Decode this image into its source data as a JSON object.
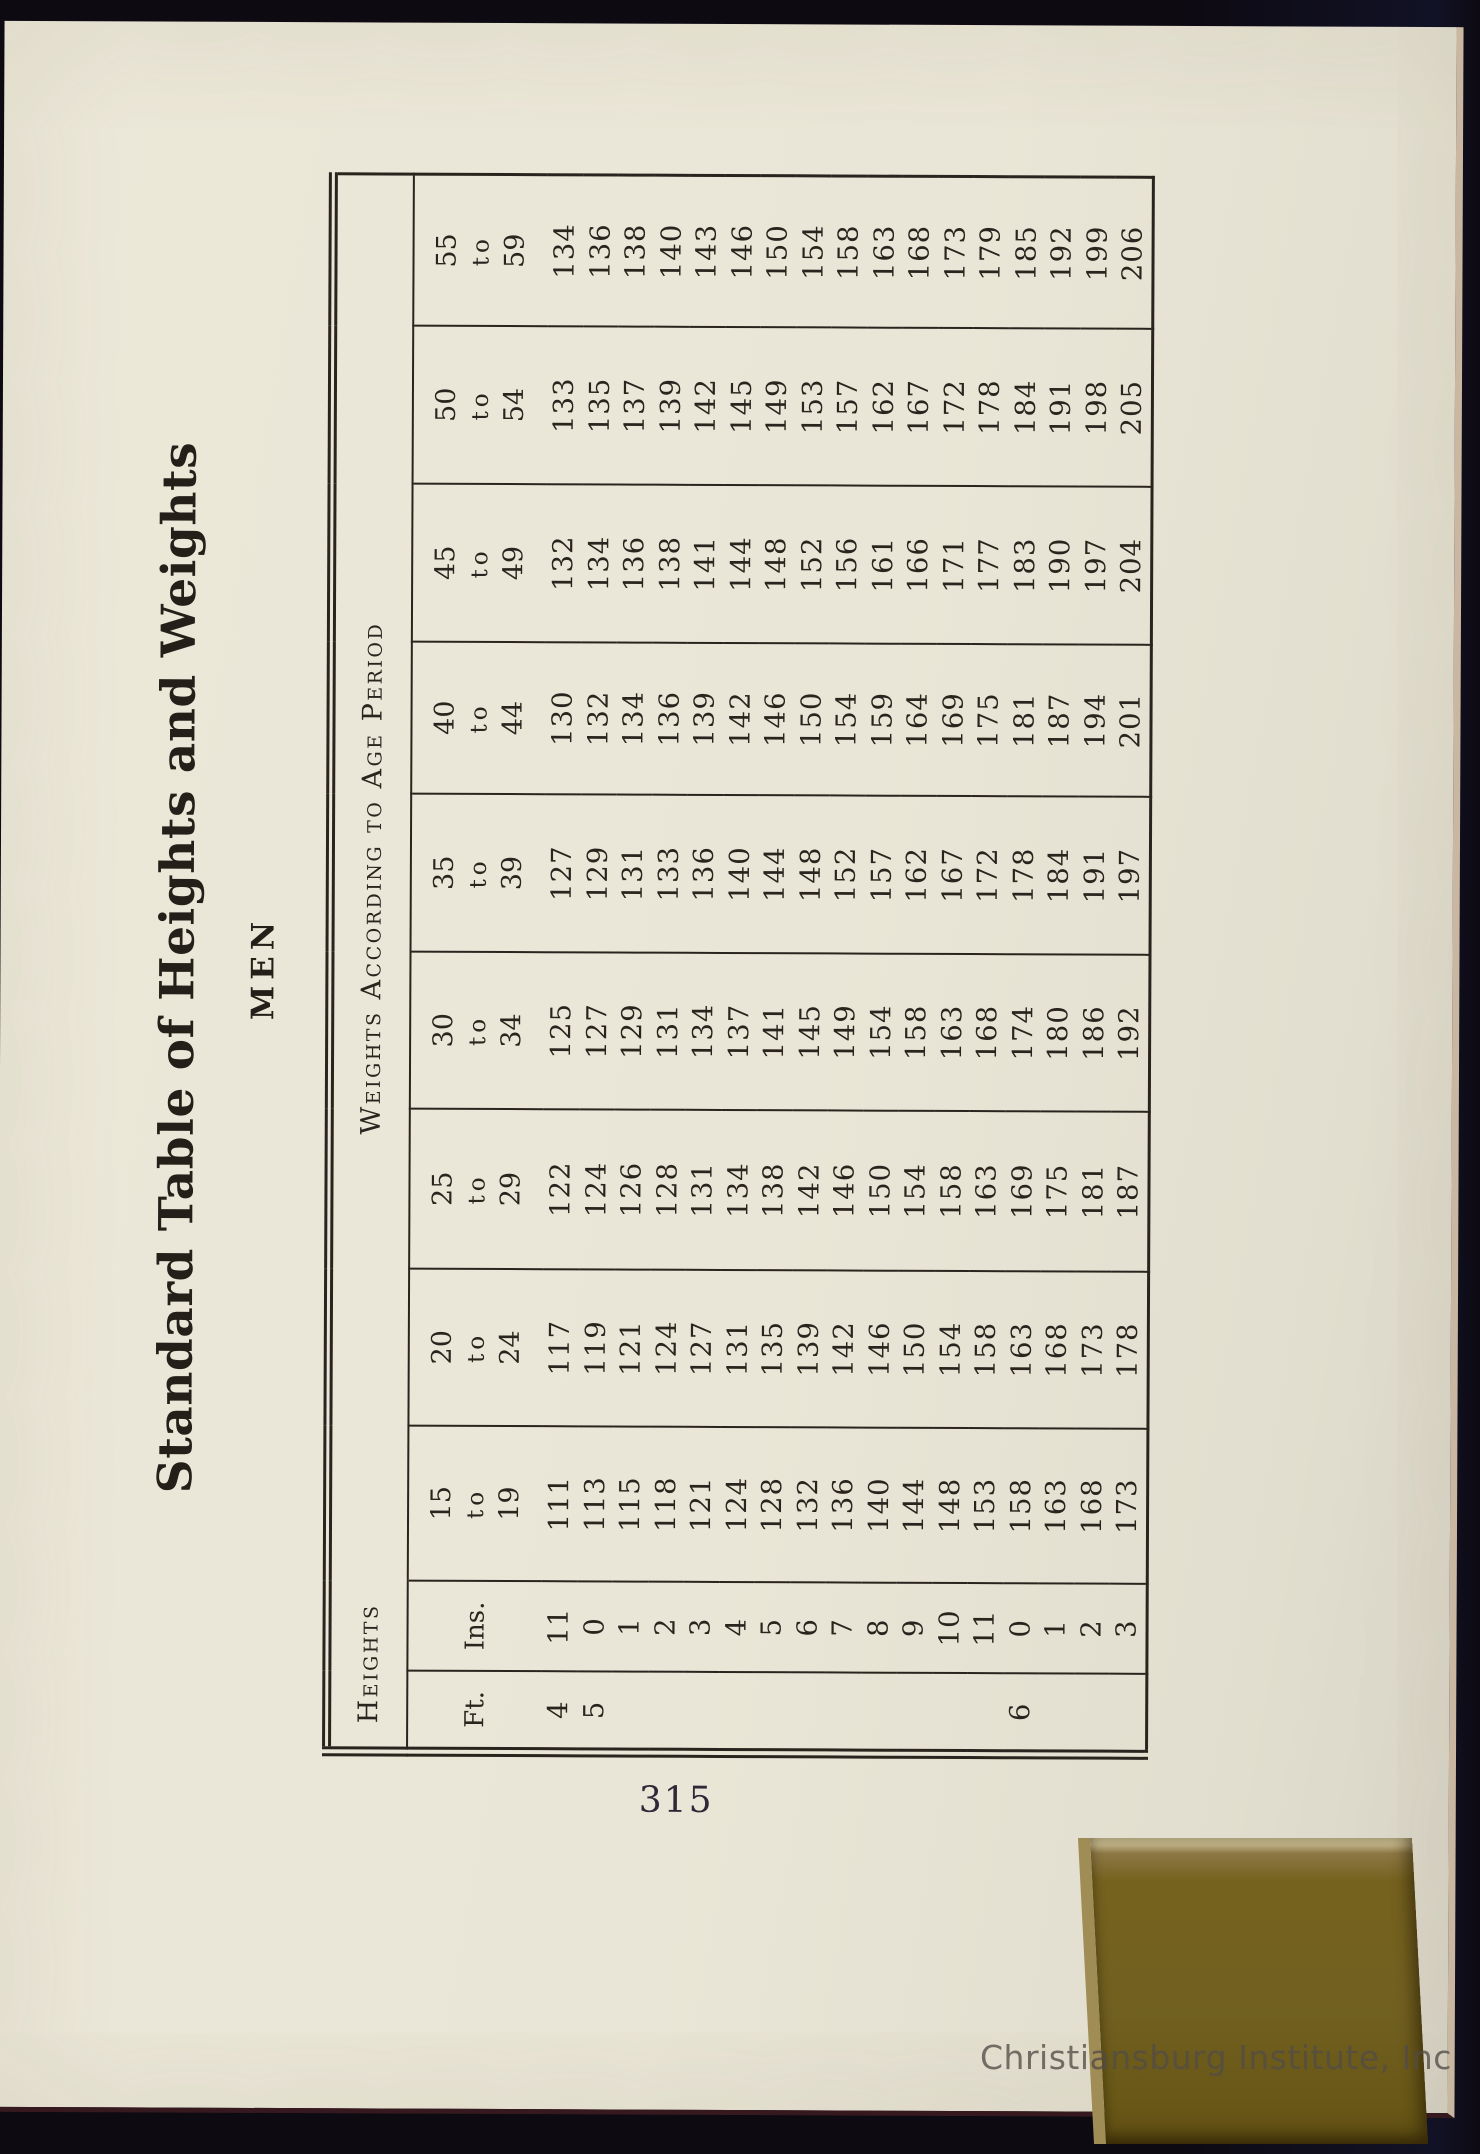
{
  "page": {
    "title": "Standard Table of Heights and Weights",
    "gender_heading": "MEN",
    "page_number": "315",
    "watermark": "Christiansburg Institute, Inc"
  },
  "table": {
    "group_headers": {
      "heights": "Heights",
      "weights": "Weights According to Age Period"
    },
    "columns": {
      "ft_label": "Ft.",
      "ins_label": "Ins."
    },
    "age_separator": "to",
    "age_periods": [
      [
        "15",
        "19"
      ],
      [
        "20",
        "24"
      ],
      [
        "25",
        "29"
      ],
      [
        "30",
        "34"
      ],
      [
        "35",
        "39"
      ],
      [
        "40",
        "44"
      ],
      [
        "45",
        "49"
      ],
      [
        "50",
        "54"
      ],
      [
        "55",
        "59"
      ]
    ],
    "rows": [
      {
        "ft": "4",
        "ins": "11",
        "weights": [
          111,
          117,
          122,
          125,
          127,
          130,
          132,
          133,
          134
        ]
      },
      {
        "ft": "5",
        "ins": "0",
        "weights": [
          113,
          119,
          124,
          127,
          129,
          132,
          134,
          135,
          136
        ]
      },
      {
        "ft": "",
        "ins": "1",
        "weights": [
          115,
          121,
          126,
          129,
          131,
          134,
          136,
          137,
          138
        ]
      },
      {
        "ft": "",
        "ins": "2",
        "weights": [
          118,
          124,
          128,
          131,
          133,
          136,
          138,
          139,
          140
        ]
      },
      {
        "ft": "",
        "ins": "3",
        "weights": [
          121,
          127,
          131,
          134,
          136,
          139,
          141,
          142,
          143
        ]
      },
      {
        "ft": "",
        "ins": "4",
        "weights": [
          124,
          131,
          134,
          137,
          140,
          142,
          144,
          145,
          146
        ]
      },
      {
        "ft": "",
        "ins": "5",
        "weights": [
          128,
          135,
          138,
          141,
          144,
          146,
          148,
          149,
          150
        ]
      },
      {
        "ft": "",
        "ins": "6",
        "weights": [
          132,
          139,
          142,
          145,
          148,
          150,
          152,
          153,
          154
        ]
      },
      {
        "ft": "",
        "ins": "7",
        "weights": [
          136,
          142,
          146,
          149,
          152,
          154,
          156,
          157,
          158
        ]
      },
      {
        "ft": "",
        "ins": "8",
        "weights": [
          140,
          146,
          150,
          154,
          157,
          159,
          161,
          162,
          163
        ]
      },
      {
        "ft": "",
        "ins": "9",
        "weights": [
          144,
          150,
          154,
          158,
          162,
          164,
          166,
          167,
          168
        ]
      },
      {
        "ft": "",
        "ins": "10",
        "weights": [
          148,
          154,
          158,
          163,
          167,
          169,
          171,
          172,
          173
        ]
      },
      {
        "ft": "",
        "ins": "11",
        "weights": [
          153,
          158,
          163,
          168,
          172,
          175,
          177,
          178,
          179
        ]
      },
      {
        "ft": "6",
        "ins": "0",
        "weights": [
          158,
          163,
          169,
          174,
          178,
          181,
          183,
          184,
          185
        ]
      },
      {
        "ft": "",
        "ins": "1",
        "weights": [
          163,
          168,
          175,
          180,
          184,
          187,
          190,
          191,
          192
        ]
      },
      {
        "ft": "",
        "ins": "2",
        "weights": [
          168,
          173,
          181,
          186,
          191,
          194,
          197,
          198,
          199
        ]
      },
      {
        "ft": "",
        "ins": "3",
        "weights": [
          173,
          178,
          187,
          192,
          197,
          201,
          204,
          205,
          206
        ]
      }
    ]
  },
  "colors": {
    "paper": "#eae6d7",
    "ink": "#29241d",
    "background": "#0d0a12",
    "gold_block": "#716020",
    "watermark_gray": "#524c46"
  }
}
